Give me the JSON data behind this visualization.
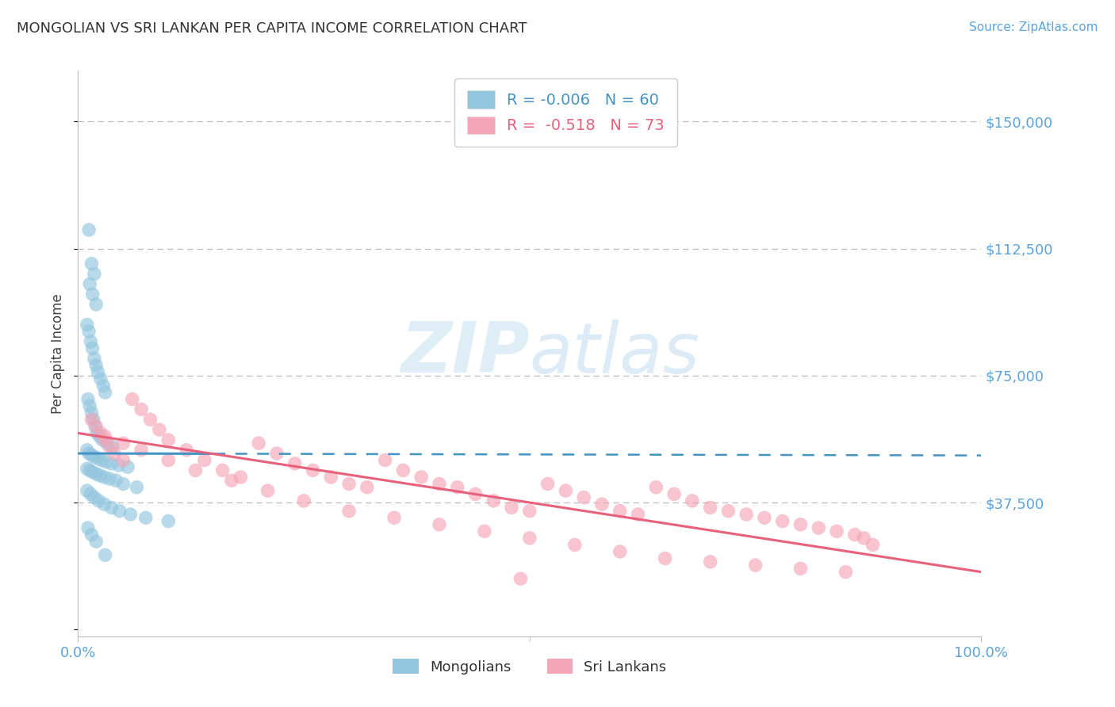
{
  "title": "MONGOLIAN VS SRI LANKAN PER CAPITA INCOME CORRELATION CHART",
  "source_text": "Source: ZipAtlas.com",
  "ylabel": "Per Capita Income",
  "xlim": [
    0.0,
    100.0
  ],
  "ylim": [
    -2000,
    165000
  ],
  "yticks": [
    0,
    37500,
    75000,
    112500,
    150000
  ],
  "ytick_labels": [
    "",
    "$37,500",
    "$75,000",
    "$112,500",
    "$150,000"
  ],
  "blue_color": "#92c5de",
  "blue_line_color": "#4393c3",
  "pink_color": "#f4a5b8",
  "pink_line_color": "#e8607a",
  "legend_blue_label": "R = -0.006   N = 60",
  "legend_pink_label": "R =  -0.518   N = 73",
  "legend_mongolians": "Mongolians",
  "legend_srilankans": "Sri Lankans",
  "title_color": "#333333",
  "axis_color": "#5ba3d9",
  "watermark_color": "#c8e0f0",
  "background_color": "#ffffff",
  "grid_color": "#bbbbbb",
  "blue_trend_y_at_0": 52000,
  "blue_trend_y_at_100": 51400,
  "pink_trend_y_at_0": 58000,
  "pink_trend_y_at_100": 17000,
  "blue_scatter_x": [
    1.2,
    1.5,
    1.8,
    1.3,
    1.6,
    2.0,
    1.0,
    1.2,
    1.4,
    1.6,
    1.8,
    2.0,
    2.2,
    2.5,
    2.8,
    3.0,
    1.1,
    1.3,
    1.5,
    1.7,
    1.9,
    2.1,
    2.4,
    2.7,
    3.2,
    3.8,
    1.0,
    1.2,
    1.5,
    1.8,
    2.2,
    2.6,
    3.1,
    3.7,
    4.5,
    5.5,
    1.0,
    1.3,
    1.6,
    2.0,
    2.4,
    2.9,
    3.5,
    4.2,
    5.0,
    6.5,
    1.0,
    1.4,
    1.8,
    2.3,
    2.9,
    3.7,
    4.6,
    5.8,
    7.5,
    10.0,
    1.1,
    1.5,
    2.0,
    3.0
  ],
  "blue_scatter_y": [
    118000,
    108000,
    105000,
    102000,
    99000,
    96000,
    90000,
    88000,
    85000,
    83000,
    80000,
    78000,
    76000,
    74000,
    72000,
    70000,
    68000,
    66000,
    64000,
    62000,
    60000,
    58000,
    57000,
    56000,
    55000,
    54000,
    53000,
    52000,
    51500,
    51000,
    50500,
    50000,
    49500,
    49000,
    48500,
    48000,
    47500,
    47000,
    46500,
    46000,
    45500,
    45000,
    44500,
    44000,
    43000,
    42000,
    41000,
    40000,
    39000,
    38000,
    37000,
    36000,
    35000,
    34000,
    33000,
    32000,
    30000,
    28000,
    26000,
    22000
  ],
  "pink_scatter_x": [
    1.5,
    2.0,
    2.5,
    3.0,
    3.5,
    4.0,
    5.0,
    6.0,
    7.0,
    8.0,
    9.0,
    10.0,
    12.0,
    14.0,
    16.0,
    18.0,
    20.0,
    22.0,
    24.0,
    26.0,
    28.0,
    30.0,
    32.0,
    34.0,
    36.0,
    38.0,
    40.0,
    42.0,
    44.0,
    46.0,
    48.0,
    50.0,
    52.0,
    54.0,
    56.0,
    58.0,
    60.0,
    62.0,
    64.0,
    66.0,
    68.0,
    70.0,
    72.0,
    74.0,
    76.0,
    78.0,
    80.0,
    82.0,
    84.0,
    86.0,
    3.0,
    5.0,
    7.0,
    10.0,
    13.0,
    17.0,
    21.0,
    25.0,
    30.0,
    35.0,
    40.0,
    45.0,
    50.0,
    55.0,
    60.0,
    65.0,
    70.0,
    75.0,
    80.0,
    85.0,
    49.0,
    87.0,
    88.0
  ],
  "pink_scatter_y": [
    62000,
    60000,
    58000,
    56000,
    54000,
    52000,
    50000,
    68000,
    65000,
    62000,
    59000,
    56000,
    53000,
    50000,
    47000,
    45000,
    55000,
    52000,
    49000,
    47000,
    45000,
    43000,
    42000,
    50000,
    47000,
    45000,
    43000,
    42000,
    40000,
    38000,
    36000,
    35000,
    43000,
    41000,
    39000,
    37000,
    35000,
    34000,
    42000,
    40000,
    38000,
    36000,
    35000,
    34000,
    33000,
    32000,
    31000,
    30000,
    29000,
    28000,
    57000,
    55000,
    53000,
    50000,
    47000,
    44000,
    41000,
    38000,
    35000,
    33000,
    31000,
    29000,
    27000,
    25000,
    23000,
    21000,
    20000,
    19000,
    18000,
    17000,
    15000,
    27000,
    25000
  ]
}
